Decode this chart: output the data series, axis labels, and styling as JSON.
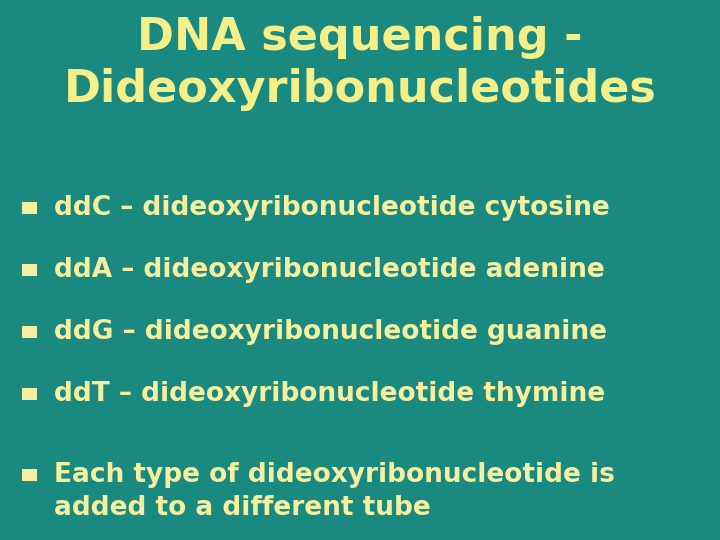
{
  "background_color": "#1a8a80",
  "title_line1": "DNA sequencing -",
  "title_line2": "Dideoxyribonucleotides",
  "title_color": "#f5ef8a",
  "title_fontsize": 32,
  "bullet_color": "#f5f0a0",
  "bullet_fontsize": 19,
  "bullet_square_color": "#f5f0a0",
  "bullets": [
    "ddC – dideoxyribonucleotide cytosine",
    "ddA – dideoxyribonucleotide adenine",
    "ddG – dideoxyribonucleotide guanine",
    "ddT – dideoxyribonucleotide thymine"
  ],
  "extra_bullet_line1": "Each type of dideoxyribonucleotide is",
  "extra_bullet_line2": "added to a different tube",
  "font_family": "DejaVu Sans"
}
